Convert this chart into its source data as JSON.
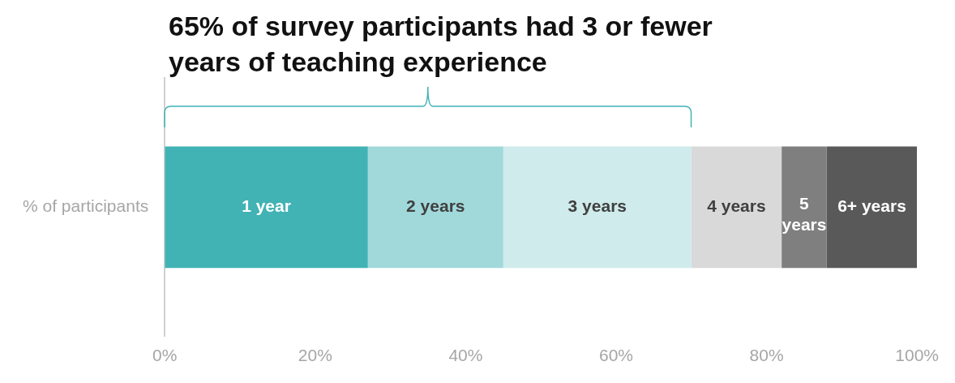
{
  "chart_data": {
    "type": "bar",
    "orientation": "horizontal",
    "stacked": true,
    "title": "65% of survey participants had 3 or fewer years of teaching experience",
    "categories": [
      "% of participants"
    ],
    "series": [
      {
        "name": "1 year",
        "color": "#42b3b5",
        "values": [
          27
        ]
      },
      {
        "name": "2 years",
        "color": "#a1d9db",
        "values": [
          18
        ]
      },
      {
        "name": "3 years",
        "color": "#cfebeb",
        "values": [
          25
        ]
      },
      {
        "name": "4 years",
        "color": "#d9d9d9",
        "values": [
          12
        ]
      },
      {
        "name": "5 years",
        "color": "#7f7f7f",
        "values": [
          6
        ]
      },
      {
        "name": "6+ years",
        "color": "#595959",
        "values": [
          12
        ]
      }
    ],
    "xlim": [
      0,
      100
    ],
    "xticks": [
      {
        "value": 0,
        "label": "0%"
      },
      {
        "value": 20,
        "label": "20%"
      },
      {
        "value": 40,
        "label": "40%"
      },
      {
        "value": 60,
        "label": "60%"
      },
      {
        "value": 80,
        "label": "80%"
      },
      {
        "value": 100,
        "label": "100%"
      }
    ],
    "grid": false,
    "legend": false
  }
}
